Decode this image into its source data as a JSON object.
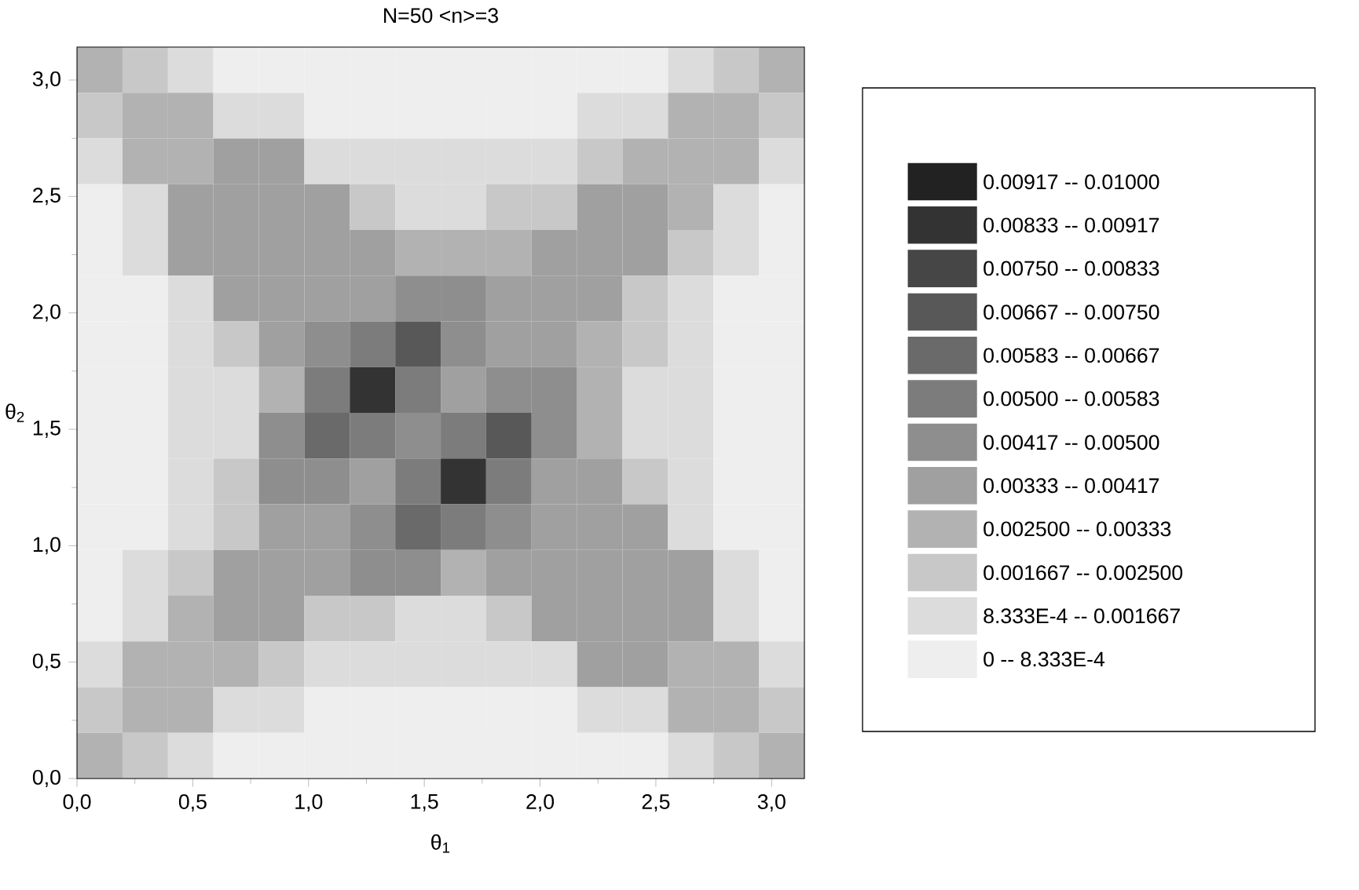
{
  "chart_data": {
    "type": "heatmap",
    "title": "N=50  <n>=3",
    "xlabel": "θ$_{1}$",
    "ylabel": "θ$_{2}$",
    "x": [
      0.098,
      0.295,
      0.491,
      0.687,
      0.884,
      1.08,
      1.276,
      1.473,
      1.669,
      1.865,
      2.062,
      2.258,
      2.454,
      2.651,
      2.847,
      3.043
    ],
    "y": [
      3.043,
      2.847,
      2.651,
      2.454,
      2.258,
      2.062,
      1.865,
      1.669,
      1.473,
      1.276,
      1.08,
      0.884,
      0.687,
      0.491,
      0.295,
      0.098
    ],
    "xlim": [
      0,
      3.1416
    ],
    "ylim": [
      0,
      3.1416
    ],
    "xticks": [
      {
        "value": 0,
        "label": "0,0"
      },
      {
        "value": 0.5,
        "label": "0,5"
      },
      {
        "value": 1,
        "label": "1,0"
      },
      {
        "value": 1.5,
        "label": "1,5"
      },
      {
        "value": 2,
        "label": "2,0"
      },
      {
        "value": 2.5,
        "label": "2,5"
      },
      {
        "value": 3,
        "label": "3,0"
      }
    ],
    "yticks": [
      {
        "value": 0,
        "label": "0,0"
      },
      {
        "value": 0.5,
        "label": "0,5"
      },
      {
        "value": 1,
        "label": "1,0"
      },
      {
        "value": 1.5,
        "label": "1,5"
      },
      {
        "value": 2,
        "label": "2,0"
      },
      {
        "value": 2.5,
        "label": "2,5"
      },
      {
        "value": 3,
        "label": "3,0"
      }
    ],
    "clim": [
      0,
      0.01
    ],
    "cticks": [
      {
        "value": 0.00042,
        "label": "0  --  8.333E-4"
      },
      {
        "value": 0.00125,
        "label": "8.333E-4  --  0.001667"
      },
      {
        "value": 0.00208,
        "label": "0.001667  --  0.002500"
      },
      {
        "value": 0.00292,
        "label": "0.002500  --  0.00333"
      },
      {
        "value": 0.00375,
        "label": "0.00333  --  0.00417"
      },
      {
        "value": 0.00458,
        "label": "0.00417  --  0.00500"
      },
      {
        "value": 0.00542,
        "label": "0.00500  --  0.00583"
      },
      {
        "value": 0.00625,
        "label": "0.00583  --  0.00667"
      },
      {
        "value": 0.00708,
        "label": "0.00667  --  0.00750"
      },
      {
        "value": 0.00792,
        "label": "0.00750  --  0.00833"
      },
      {
        "value": 0.00875,
        "label": "0.00833  --  0.00917"
      },
      {
        "value": 0.00958,
        "label": "0.00917  --  0.01000"
      }
    ],
    "cells": [
      [
        0.00292,
        0.00208,
        0.00125,
        0.00042,
        0.00042,
        0.00042,
        0.00042,
        0.00042,
        0.00042,
        0.00042,
        0.00042,
        0.00042,
        0.00042,
        0.00125,
        0.00208,
        0.00292
      ],
      [
        0.00208,
        0.00292,
        0.00292,
        0.00125,
        0.00125,
        0.00042,
        0.00042,
        0.00042,
        0.00042,
        0.00042,
        0.00042,
        0.00125,
        0.00125,
        0.00292,
        0.00292,
        0.00208
      ],
      [
        0.00125,
        0.00292,
        0.00292,
        0.00375,
        0.00375,
        0.00125,
        0.00125,
        0.00125,
        0.00125,
        0.00125,
        0.00125,
        0.00208,
        0.00292,
        0.00292,
        0.00292,
        0.00125
      ],
      [
        0.00042,
        0.00125,
        0.00375,
        0.00375,
        0.00375,
        0.00375,
        0.00208,
        0.00125,
        0.00125,
        0.00208,
        0.00208,
        0.00375,
        0.00375,
        0.00292,
        0.00125,
        0.00042
      ],
      [
        0.00042,
        0.00125,
        0.00375,
        0.00375,
        0.00375,
        0.00375,
        0.00375,
        0.00292,
        0.00292,
        0.00292,
        0.00375,
        0.00375,
        0.00375,
        0.00208,
        0.00125,
        0.00042
      ],
      [
        0.00042,
        0.00042,
        0.00125,
        0.00375,
        0.00375,
        0.00375,
        0.00375,
        0.00458,
        0.00458,
        0.00375,
        0.00375,
        0.00375,
        0.00208,
        0.00125,
        0.00042,
        0.00042
      ],
      [
        0.00042,
        0.00042,
        0.00125,
        0.00208,
        0.00375,
        0.00458,
        0.00542,
        0.00708,
        0.00458,
        0.00375,
        0.00375,
        0.00292,
        0.00208,
        0.00125,
        0.00042,
        0.00042
      ],
      [
        0.00042,
        0.00042,
        0.00125,
        0.00125,
        0.00292,
        0.00542,
        0.00875,
        0.00542,
        0.00375,
        0.00458,
        0.00458,
        0.00292,
        0.00125,
        0.00125,
        0.00042,
        0.00042
      ],
      [
        0.00042,
        0.00042,
        0.00125,
        0.00125,
        0.00458,
        0.00625,
        0.00542,
        0.00458,
        0.00542,
        0.00708,
        0.00458,
        0.00292,
        0.00125,
        0.00125,
        0.00042,
        0.00042
      ],
      [
        0.00042,
        0.00042,
        0.00125,
        0.00208,
        0.00458,
        0.00458,
        0.00375,
        0.00542,
        0.00875,
        0.00542,
        0.00375,
        0.00375,
        0.00208,
        0.00125,
        0.00042,
        0.00042
      ],
      [
        0.00042,
        0.00042,
        0.00125,
        0.00208,
        0.00375,
        0.00375,
        0.00458,
        0.00625,
        0.00542,
        0.00458,
        0.00375,
        0.00375,
        0.00375,
        0.00125,
        0.00042,
        0.00042
      ],
      [
        0.00042,
        0.00125,
        0.00208,
        0.00375,
        0.00375,
        0.00375,
        0.00458,
        0.00458,
        0.00292,
        0.00375,
        0.00375,
        0.00375,
        0.00375,
        0.00375,
        0.00125,
        0.00042
      ],
      [
        0.00042,
        0.00125,
        0.00292,
        0.00375,
        0.00375,
        0.00208,
        0.00208,
        0.00125,
        0.00125,
        0.00208,
        0.00375,
        0.00375,
        0.00375,
        0.00375,
        0.00125,
        0.00042
      ],
      [
        0.00125,
        0.00292,
        0.00292,
        0.00292,
        0.00208,
        0.00125,
        0.00125,
        0.00125,
        0.00125,
        0.00125,
        0.00125,
        0.00375,
        0.00375,
        0.00292,
        0.00292,
        0.00125
      ],
      [
        0.00208,
        0.00292,
        0.00292,
        0.00125,
        0.00125,
        0.00042,
        0.00042,
        0.00042,
        0.00042,
        0.00042,
        0.00042,
        0.00125,
        0.00125,
        0.00292,
        0.00292,
        0.00208
      ],
      [
        0.00292,
        0.00208,
        0.00125,
        0.00042,
        0.00042,
        0.00042,
        0.00042,
        0.00042,
        0.00042,
        0.00042,
        0.00042,
        0.00042,
        0.00042,
        0.00125,
        0.00208,
        0.00292
      ]
    ]
  }
}
